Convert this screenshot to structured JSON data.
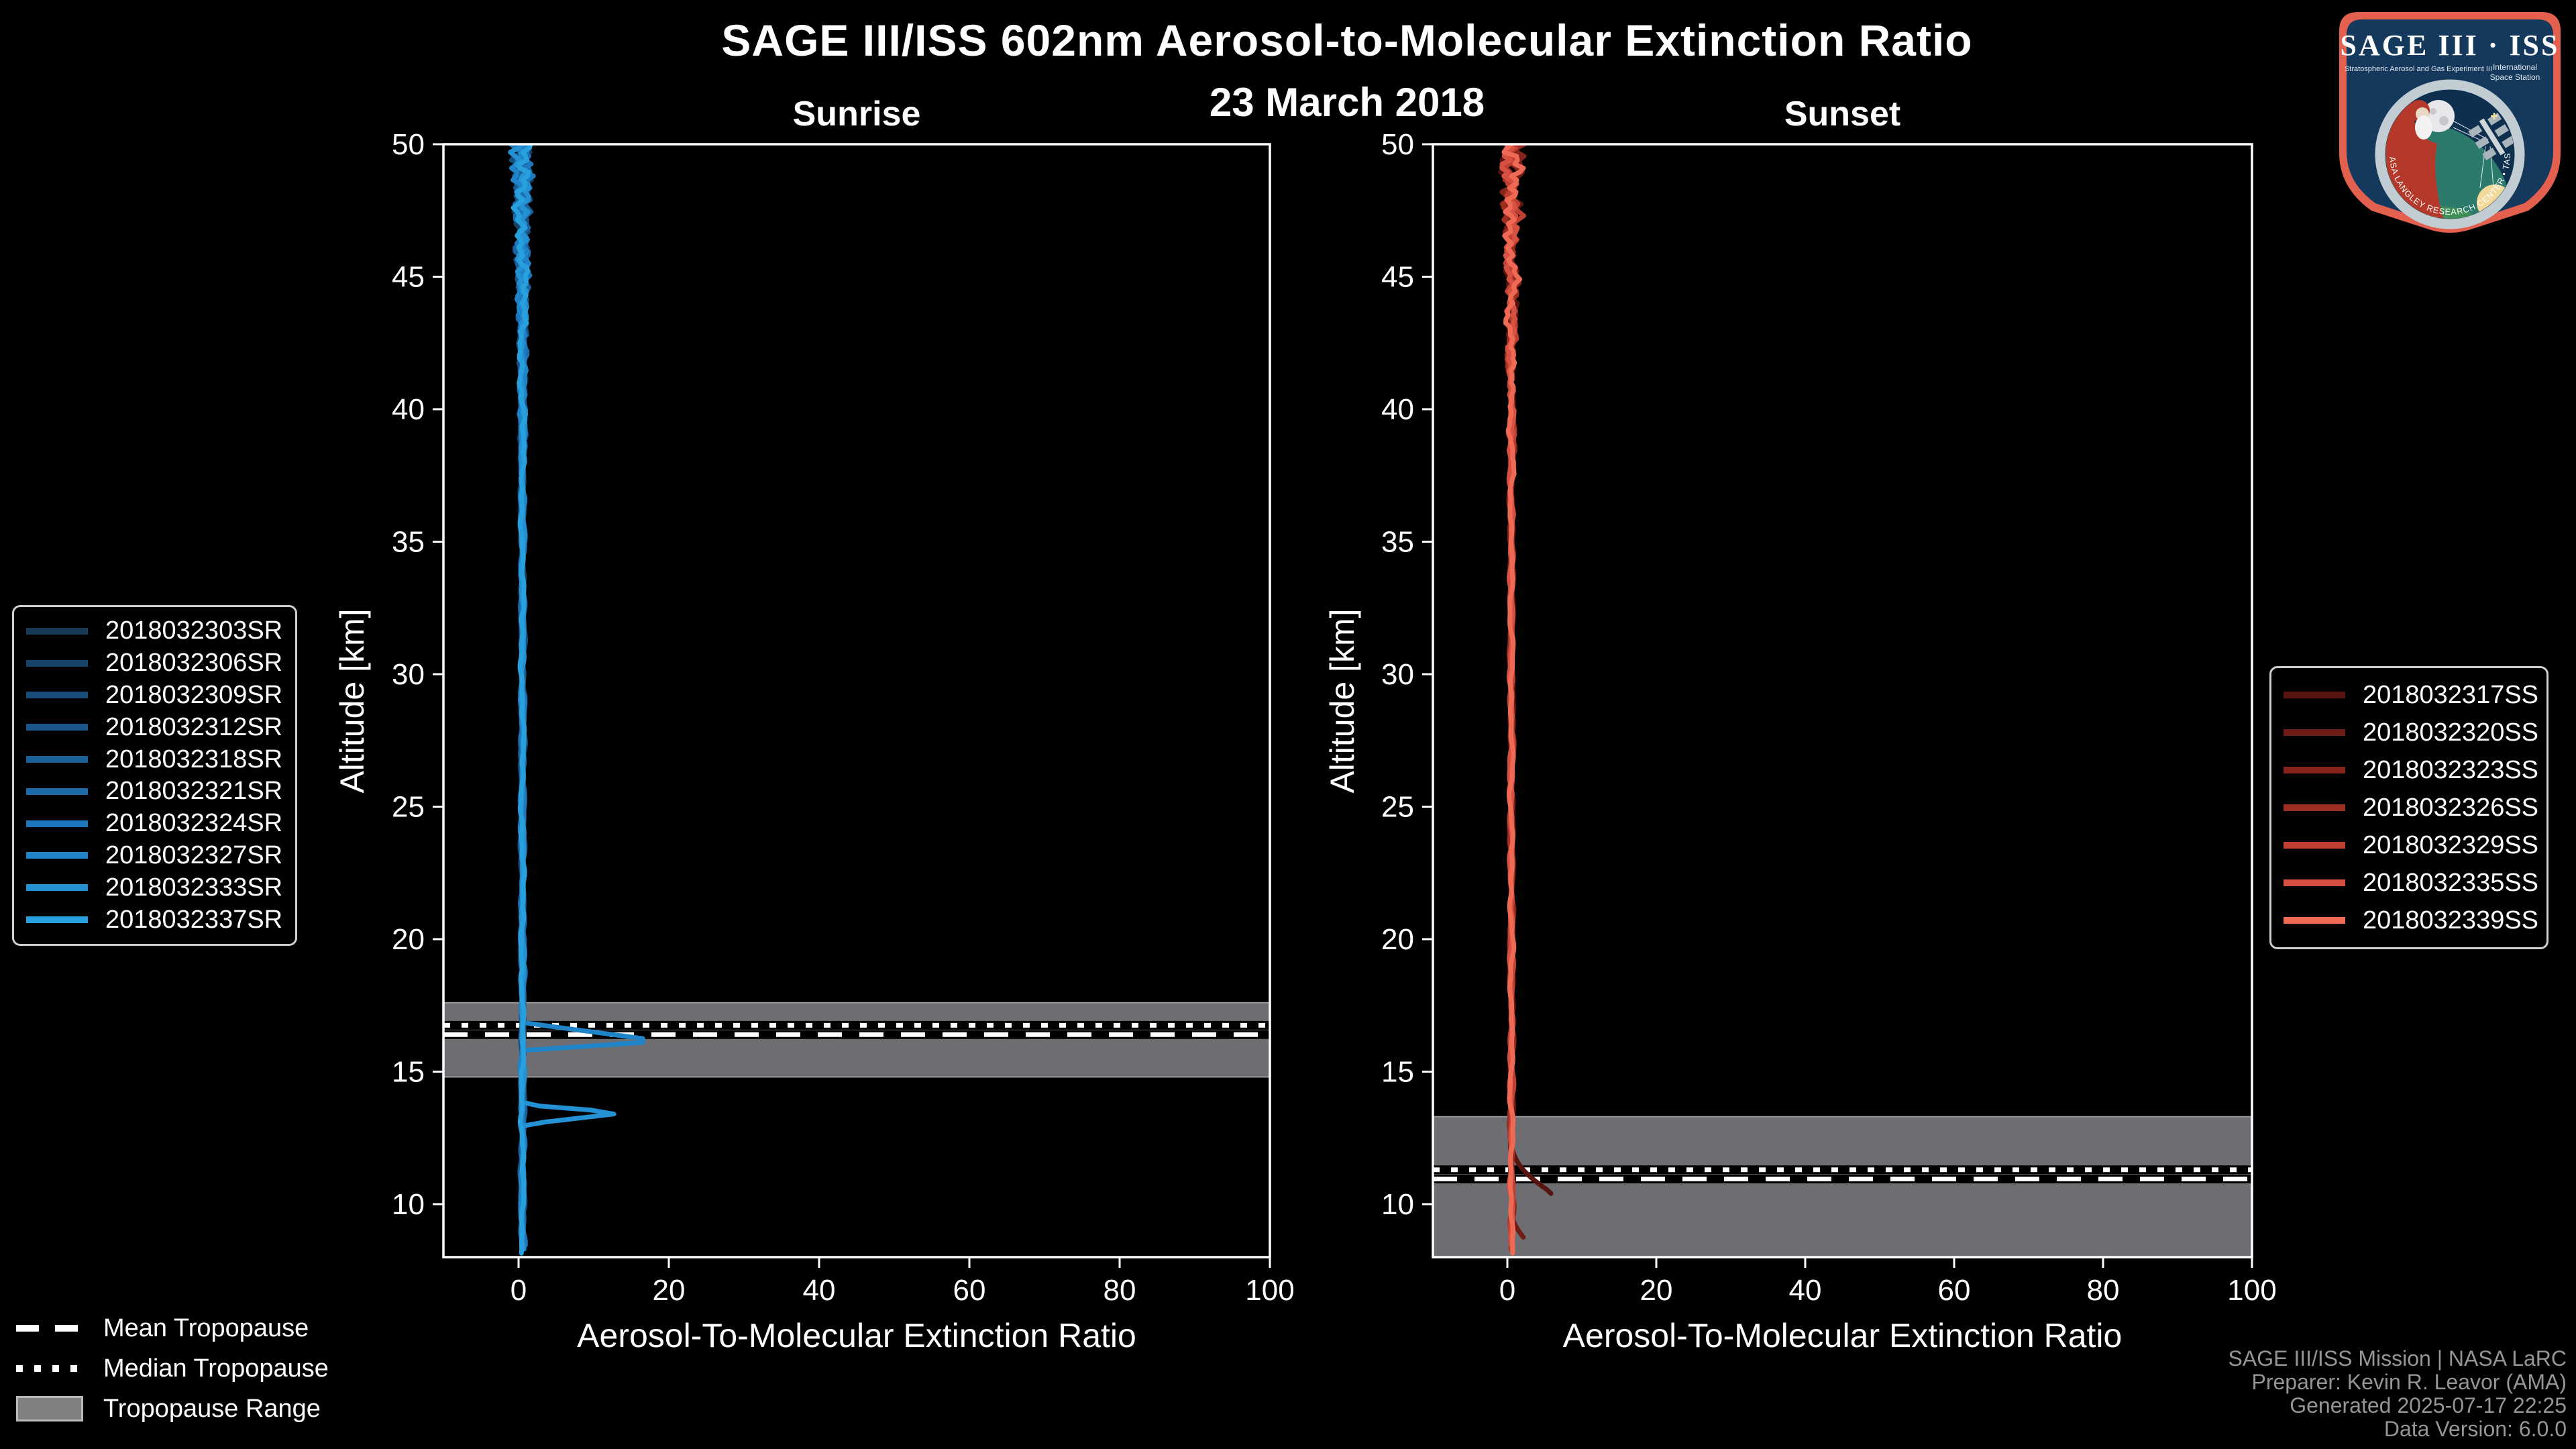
{
  "figure": {
    "title": "SAGE III/ISS 602nm Aerosol-to-Molecular Extinction Ratio",
    "date": "23 March 2018"
  },
  "style": {
    "background": "#000000",
    "frame": "#ffffff",
    "text": "#ffffff",
    "footer_text": "#959595",
    "band_fill": "#6d6d72",
    "band_edge": "#98989d",
    "tropopause_line": "#ffffff"
  },
  "tropopause_legend": {
    "items": [
      {
        "label": "Mean Tropopause",
        "style": "dashed"
      },
      {
        "label": "Median Tropopause",
        "style": "dotted"
      },
      {
        "label": "Tropopause Range",
        "style": "band"
      }
    ]
  },
  "footer": {
    "lines": [
      "SAGE III/ISS Mission | NASA LaRC",
      "Preparer: Kevin R. Leavor (AMA)",
      "Generated 2025-07-17 22:25",
      "Data Version: 6.0.0"
    ]
  },
  "logo": {
    "title": "SAGE III · ISS",
    "subtitle_left": "Stratospheric Aerosol and Gas Experiment III",
    "subtitle_right_1": "International",
    "subtitle_right_2": "Space Station",
    "ring_text": "BALL  •  NASA LANGLEY RESEARCH CENTER  •  TAS-I  •  ESA"
  },
  "chart_data": [
    {
      "id": "sunrise",
      "type": "line",
      "title": "Sunrise",
      "xlabel": "Aerosol-To-Molecular Extinction Ratio",
      "ylabel": "Altitude [km]",
      "xlim": [
        -10,
        100
      ],
      "ylim": [
        8,
        50
      ],
      "xticks": [
        0,
        20,
        40,
        60,
        80,
        100
      ],
      "yticks": [
        10,
        15,
        20,
        25,
        30,
        35,
        40,
        45,
        50
      ],
      "grid": false,
      "legend_position": "left",
      "tropopause": {
        "range": [
          14.8,
          17.6
        ],
        "mean": 16.4,
        "median": 16.75
      },
      "profile_note": "Vertical extinction-ratio profiles hugging 0-2 from 8 to 50 km with growing jitter above 40 km",
      "series": [
        {
          "name": "2018032303SR",
          "color": "#173a57",
          "seed": 11,
          "base": 0.55,
          "jitter": 0.34,
          "top_boost": 1.0,
          "alt_min": 8.3,
          "alt_max": 50
        },
        {
          "name": "2018032306SR",
          "color": "#184368",
          "seed": 22,
          "base": 0.5,
          "jitter": 0.3,
          "top_boost": 1.0,
          "alt_min": 8.2,
          "alt_max": 50
        },
        {
          "name": "2018032309SR",
          "color": "#194d79",
          "seed": 33,
          "base": 0.62,
          "jitter": 0.33,
          "top_boost": 1.1,
          "alt_min": 8.4,
          "alt_max": 50
        },
        {
          "name": "2018032312SR",
          "color": "#1a578a",
          "seed": 44,
          "base": 0.45,
          "jitter": 0.3,
          "top_boost": 0.9,
          "alt_min": 8.2,
          "alt_max": 50
        },
        {
          "name": "2018032318SR",
          "color": "#1b619b",
          "seed": 55,
          "base": 0.55,
          "jitter": 0.34,
          "top_boost": 1.0,
          "alt_min": 8.3,
          "alt_max": 50
        },
        {
          "name": "2018032321SR",
          "color": "#1c6cac",
          "seed": 66,
          "base": 0.5,
          "jitter": 0.31,
          "top_boost": 1.1,
          "alt_min": 8.2,
          "alt_max": 50
        },
        {
          "name": "2018032324SR",
          "color": "#1e78bd",
          "seed": 77,
          "base": 0.6,
          "jitter": 0.33,
          "top_boost": 1.0,
          "alt_min": 8.4,
          "alt_max": 50
        },
        {
          "name": "2018032327SR",
          "color": "#2084c9",
          "seed": 88,
          "base": 0.5,
          "jitter": 0.32,
          "top_boost": 1.0,
          "alt_min": 8.2,
          "alt_max": 50,
          "spikes": [
            {
              "alt_top": 16.85,
              "alt_peak": 16.15,
              "alt_bottom": 15.8,
              "peak": 19.2
            }
          ]
        },
        {
          "name": "2018032333SR",
          "color": "#2391d3",
          "seed": 99,
          "base": 0.55,
          "jitter": 0.3,
          "top_boost": 1.0,
          "alt_min": 8.3,
          "alt_max": 50,
          "spikes": [
            {
              "alt_top": 13.75,
              "alt_peak": 13.45,
              "alt_bottom": 13.0,
              "peak": 14.2
            }
          ]
        },
        {
          "name": "2018032337SR",
          "color": "#27a0dd",
          "seed": 110,
          "base": 0.5,
          "jitter": 0.32,
          "top_boost": 1.0,
          "alt_min": 8.1,
          "alt_max": 50
        }
      ]
    },
    {
      "id": "sunset",
      "type": "line",
      "title": "Sunset",
      "xlabel": "Aerosol-To-Molecular Extinction Ratio",
      "ylabel": "Altitude [km]",
      "xlim": [
        -10,
        100
      ],
      "ylim": [
        8,
        50
      ],
      "xticks": [
        0,
        20,
        40,
        60,
        80,
        100
      ],
      "yticks": [
        10,
        15,
        20,
        25,
        30,
        35,
        40,
        45,
        50
      ],
      "grid": false,
      "legend_position": "right",
      "tropopause": {
        "range": [
          8.0,
          13.3
        ],
        "mean": 10.95,
        "median": 11.3
      },
      "profile_note": "Vertical extinction-ratio profiles near 0-1.5; darkest profile bends to ~6 near 10.5 km",
      "series": [
        {
          "name": "2018032317SS",
          "color": "#571511",
          "seed": 7,
          "base": 0.6,
          "jitter": 0.3,
          "top_boost": 1.2,
          "alt_min": 10.4,
          "alt_max": 50,
          "tail": {
            "alt_start": 12.3,
            "alt_end": 10.45,
            "peak": 5.9
          }
        },
        {
          "name": "2018032320SS",
          "color": "#6f1c15",
          "seed": 17,
          "base": 0.55,
          "jitter": 0.32,
          "top_boost": 1.1,
          "alt_min": 8.7,
          "alt_max": 50,
          "tail": {
            "alt_start": 9.8,
            "alt_end": 8.75,
            "peak": 2.2
          }
        },
        {
          "name": "2018032323SS",
          "color": "#87251c",
          "seed": 27,
          "base": 0.6,
          "jitter": 0.34,
          "top_boost": 1.2,
          "alt_min": 8.3,
          "alt_max": 50
        },
        {
          "name": "2018032326SS",
          "color": "#9f2e22",
          "seed": 37,
          "base": 0.5,
          "jitter": 0.32,
          "top_boost": 1.1,
          "alt_min": 8.5,
          "alt_max": 50
        },
        {
          "name": "2018032329SS",
          "color": "#bf4033",
          "seed": 47,
          "base": 0.58,
          "jitter": 0.33,
          "top_boost": 1.2,
          "alt_min": 8.3,
          "alt_max": 50
        },
        {
          "name": "2018032335SS",
          "color": "#d65142",
          "seed": 57,
          "base": 0.5,
          "jitter": 0.31,
          "top_boost": 1.1,
          "alt_min": 8.4,
          "alt_max": 50
        },
        {
          "name": "2018032339SS",
          "color": "#ef6a54",
          "seed": 67,
          "base": 0.55,
          "jitter": 0.33,
          "top_boost": 1.2,
          "alt_min": 8.15,
          "alt_max": 50
        }
      ]
    }
  ]
}
